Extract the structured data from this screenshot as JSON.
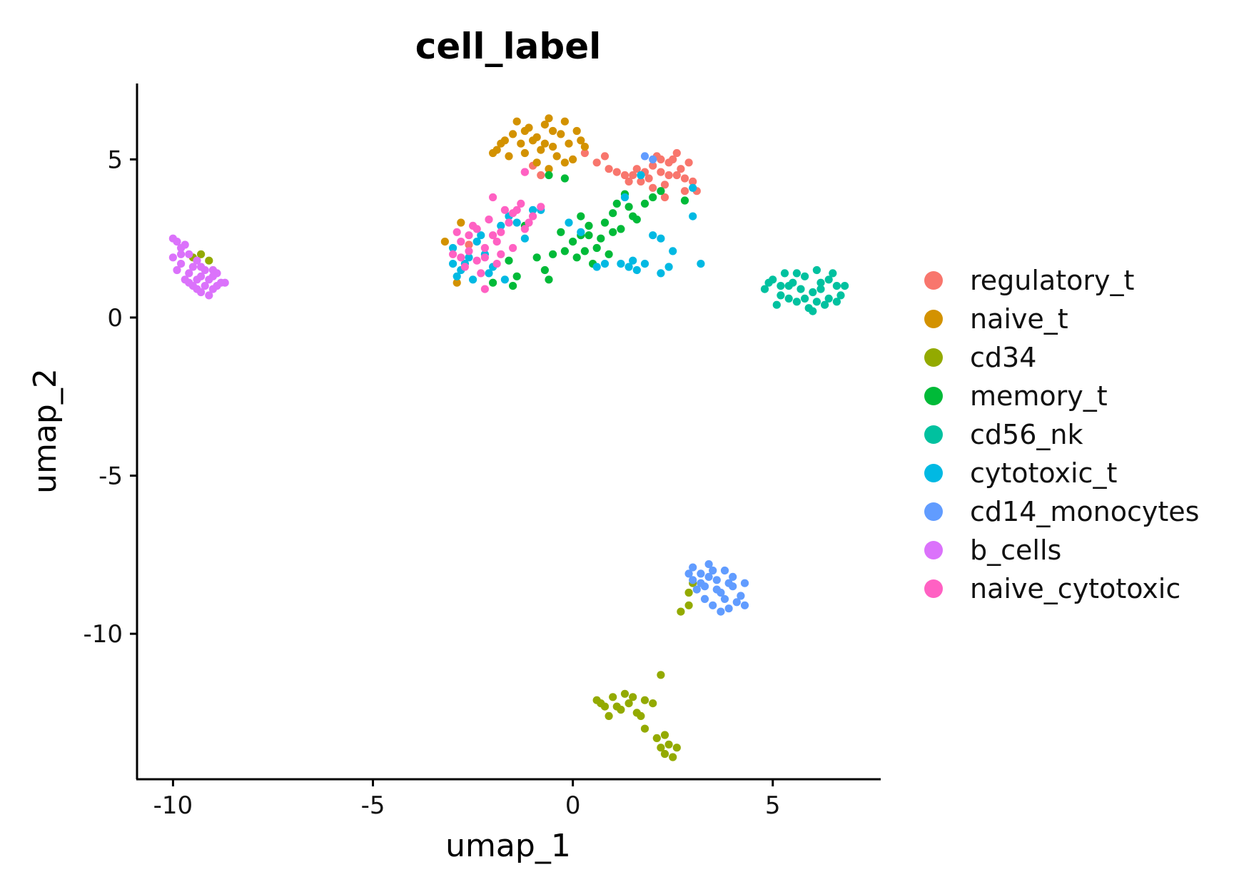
{
  "chart_data": {
    "type": "scatter",
    "title": "cell_label",
    "xlabel": "umap_1",
    "ylabel": "umap_2",
    "xlim": [
      -10.9,
      7.7
    ],
    "ylim": [
      -14.6,
      7.4
    ],
    "xticks": [
      {
        "value": -10,
        "label": "-10"
      },
      {
        "value": -5,
        "label": "-5"
      },
      {
        "value": 0,
        "label": "0"
      },
      {
        "value": 5,
        "label": "5"
      }
    ],
    "yticks": [
      {
        "value": 5,
        "label": "5"
      },
      {
        "value": 0,
        "label": "0"
      },
      {
        "value": -5,
        "label": "-5"
      },
      {
        "value": -10,
        "label": "-10"
      }
    ],
    "grid": false,
    "legend_position": "right",
    "series": [
      {
        "name": "regulatory_t",
        "color": "#F8766D",
        "points": [
          [
            0.6,
            4.9
          ],
          [
            0.9,
            4.7
          ],
          [
            1.1,
            4.6
          ],
          [
            1.3,
            4.5
          ],
          [
            1.5,
            4.5
          ],
          [
            1.7,
            4.3
          ],
          [
            1.9,
            4.4
          ],
          [
            2.0,
            4.8
          ],
          [
            2.1,
            5.1
          ],
          [
            2.2,
            4.6
          ],
          [
            2.3,
            4.2
          ],
          [
            2.4,
            4.9
          ],
          [
            2.5,
            5.0
          ],
          [
            2.6,
            4.5
          ],
          [
            2.7,
            4.7
          ],
          [
            2.8,
            4.4
          ],
          [
            2.9,
            4.9
          ],
          [
            3.0,
            4.3
          ],
          [
            2.3,
            3.8
          ],
          [
            1.8,
            4.6
          ],
          [
            2.0,
            4.1
          ],
          [
            2.6,
            5.2
          ],
          [
            2.8,
            4.0
          ],
          [
            1.4,
            4.3
          ],
          [
            0.8,
            5.1
          ],
          [
            -1.2,
            4.6
          ],
          [
            -0.8,
            4.5
          ],
          [
            0.3,
            5.2
          ],
          [
            -2.6,
            2.3
          ],
          [
            -1.0,
            4.8
          ],
          [
            3.1,
            4.0
          ],
          [
            2.4,
            4.5
          ],
          [
            2.2,
            5.0
          ],
          [
            1.6,
            4.7
          ]
        ]
      },
      {
        "name": "naive_t",
        "color": "#D39200",
        "points": [
          [
            -1.9,
            5.3
          ],
          [
            -1.7,
            5.6
          ],
          [
            -1.5,
            5.8
          ],
          [
            -1.3,
            5.5
          ],
          [
            -1.1,
            6.0
          ],
          [
            -0.9,
            5.7
          ],
          [
            -0.7,
            6.1
          ],
          [
            -0.5,
            5.4
          ],
          [
            -0.3,
            5.8
          ],
          [
            -0.1,
            5.5
          ],
          [
            0.1,
            5.9
          ],
          [
            0.3,
            5.4
          ],
          [
            -1.6,
            5.1
          ],
          [
            -1.2,
            5.2
          ],
          [
            -0.8,
            5.3
          ],
          [
            -0.4,
            5.1
          ],
          [
            0.0,
            5.0
          ],
          [
            -1.4,
            6.2
          ],
          [
            -0.6,
            6.3
          ],
          [
            -0.2,
            6.2
          ],
          [
            -1.8,
            5.5
          ],
          [
            -0.9,
            4.9
          ],
          [
            -0.6,
            4.7
          ],
          [
            -2.0,
            5.2
          ],
          [
            -1.0,
            5.6
          ],
          [
            -0.2,
            4.9
          ],
          [
            0.2,
            5.6
          ],
          [
            -3.2,
            2.4
          ],
          [
            -2.9,
            1.1
          ],
          [
            -2.8,
            3.0
          ],
          [
            -0.5,
            5.9
          ],
          [
            -1.2,
            5.9
          ],
          [
            -0.7,
            5.5
          ]
        ]
      },
      {
        "name": "cd34",
        "color": "#93AA00",
        "points": [
          [
            0.6,
            -12.1
          ],
          [
            0.8,
            -12.3
          ],
          [
            1.0,
            -12.0
          ],
          [
            1.2,
            -12.4
          ],
          [
            1.4,
            -12.2
          ],
          [
            1.6,
            -12.5
          ],
          [
            1.8,
            -12.1
          ],
          [
            0.9,
            -12.6
          ],
          [
            1.3,
            -11.9
          ],
          [
            1.7,
            -12.6
          ],
          [
            2.0,
            -12.2
          ],
          [
            1.1,
            -12.3
          ],
          [
            2.2,
            -13.6
          ],
          [
            2.3,
            -13.8
          ],
          [
            2.4,
            -13.5
          ],
          [
            2.5,
            -13.9
          ],
          [
            2.1,
            -13.3
          ],
          [
            2.3,
            -13.2
          ],
          [
            2.6,
            -13.6
          ],
          [
            1.8,
            -13.0
          ],
          [
            2.2,
            -11.3
          ],
          [
            2.7,
            -9.3
          ],
          [
            2.9,
            -8.7
          ],
          [
            3.0,
            -8.4
          ],
          [
            2.9,
            -9.1
          ],
          [
            -9.3,
            2.0
          ],
          [
            -9.1,
            1.8
          ],
          [
            -9.5,
            1.9
          ],
          [
            1.5,
            -12.0
          ],
          [
            0.7,
            -12.2
          ]
        ]
      },
      {
        "name": "memory_t",
        "color": "#00BA38",
        "points": [
          [
            0.0,
            2.4
          ],
          [
            0.2,
            2.6
          ],
          [
            0.4,
            2.9
          ],
          [
            0.6,
            2.2
          ],
          [
            0.8,
            3.0
          ],
          [
            1.0,
            3.3
          ],
          [
            1.2,
            2.8
          ],
          [
            1.4,
            3.5
          ],
          [
            1.6,
            3.1
          ],
          [
            1.8,
            3.6
          ],
          [
            2.0,
            3.8
          ],
          [
            2.2,
            4.0
          ],
          [
            0.1,
            1.9
          ],
          [
            0.3,
            2.1
          ],
          [
            0.5,
            1.7
          ],
          [
            0.7,
            2.5
          ],
          [
            0.9,
            2.0
          ],
          [
            1.1,
            3.6
          ],
          [
            1.3,
            3.9
          ],
          [
            0.2,
            3.2
          ],
          [
            -0.3,
            2.7
          ],
          [
            -0.5,
            2.0
          ],
          [
            -0.9,
            1.9
          ],
          [
            -1.2,
            2.9
          ],
          [
            -1.6,
            1.8
          ],
          [
            -2.0,
            1.1
          ],
          [
            -1.4,
            1.3
          ],
          [
            -0.7,
            1.5
          ],
          [
            -0.2,
            2.1
          ],
          [
            0.4,
            2.6
          ],
          [
            2.8,
            3.7
          ],
          [
            1.5,
            3.2
          ],
          [
            1.0,
            2.7
          ],
          [
            -0.6,
            4.5
          ],
          [
            -0.2,
            4.4
          ],
          [
            -0.6,
            1.2
          ],
          [
            -1.5,
            1.0
          ]
        ]
      },
      {
        "name": "cd56_nk",
        "color": "#00C19F",
        "points": [
          [
            4.8,
            0.9
          ],
          [
            5.0,
            1.2
          ],
          [
            5.2,
            0.7
          ],
          [
            5.4,
            1.0
          ],
          [
            5.6,
            0.5
          ],
          [
            5.8,
            1.3
          ],
          [
            6.0,
            0.8
          ],
          [
            6.2,
            1.1
          ],
          [
            6.4,
            0.6
          ],
          [
            6.6,
            1.0
          ],
          [
            5.1,
            0.4
          ],
          [
            5.3,
            1.4
          ],
          [
            5.7,
            0.9
          ],
          [
            5.9,
            0.3
          ],
          [
            6.1,
            1.5
          ],
          [
            6.3,
            0.4
          ],
          [
            6.5,
            1.4
          ],
          [
            6.7,
            0.7
          ],
          [
            5.5,
            1.1
          ],
          [
            6.0,
            0.2
          ],
          [
            4.9,
            1.1
          ],
          [
            5.4,
            0.6
          ],
          [
            6.2,
            0.9
          ],
          [
            6.8,
            1.0
          ],
          [
            5.8,
            0.6
          ],
          [
            6.4,
            1.2
          ],
          [
            5.6,
            1.4
          ],
          [
            6.1,
            0.5
          ],
          [
            5.2,
            1.0
          ],
          [
            6.6,
            0.5
          ]
        ]
      },
      {
        "name": "cytotoxic_t",
        "color": "#00B9E3",
        "points": [
          [
            -3.0,
            1.7
          ],
          [
            -2.8,
            1.5
          ],
          [
            -2.6,
            1.9
          ],
          [
            -2.4,
            2.4
          ],
          [
            -2.2,
            2.0
          ],
          [
            -2.0,
            1.6
          ],
          [
            -1.8,
            2.9
          ],
          [
            -1.6,
            3.2
          ],
          [
            -1.4,
            3.0
          ],
          [
            -1.2,
            2.5
          ],
          [
            -1.0,
            3.4
          ],
          [
            -2.9,
            1.3
          ],
          [
            -2.5,
            1.2
          ],
          [
            -2.1,
            1.4
          ],
          [
            -1.7,
            1.2
          ],
          [
            -3.0,
            2.2
          ],
          [
            -2.3,
            2.6
          ],
          [
            1.2,
            1.7
          ],
          [
            1.4,
            1.6
          ],
          [
            1.6,
            1.5
          ],
          [
            1.8,
            1.7
          ],
          [
            2.0,
            2.6
          ],
          [
            2.2,
            2.5
          ],
          [
            2.4,
            1.6
          ],
          [
            2.5,
            2.1
          ],
          [
            2.2,
            1.4
          ],
          [
            1.3,
            3.8
          ],
          [
            1.7,
            4.5
          ],
          [
            3.0,
            4.1
          ],
          [
            3.0,
            3.2
          ],
          [
            3.2,
            1.7
          ],
          [
            0.6,
            1.6
          ],
          [
            0.8,
            1.7
          ],
          [
            0.2,
            2.7
          ],
          [
            -0.1,
            3.0
          ],
          [
            -0.8,
            3.4
          ],
          [
            1.5,
            1.8
          ],
          [
            -2.7,
            1.7
          ]
        ]
      },
      {
        "name": "cd14_monocytes",
        "color": "#619CFF",
        "points": [
          [
            3.0,
            -7.9
          ],
          [
            3.2,
            -8.1
          ],
          [
            3.4,
            -7.8
          ],
          [
            3.6,
            -8.3
          ],
          [
            3.8,
            -8.0
          ],
          [
            4.0,
            -8.5
          ],
          [
            4.2,
            -8.8
          ],
          [
            3.1,
            -8.6
          ],
          [
            3.3,
            -8.9
          ],
          [
            3.5,
            -9.1
          ],
          [
            3.7,
            -8.7
          ],
          [
            3.9,
            -9.2
          ],
          [
            4.1,
            -9.0
          ],
          [
            3.2,
            -8.4
          ],
          [
            3.6,
            -8.6
          ],
          [
            4.3,
            -8.4
          ],
          [
            3.4,
            -8.2
          ],
          [
            3.8,
            -8.9
          ],
          [
            3.0,
            -8.3
          ],
          [
            4.0,
            -8.2
          ],
          [
            3.5,
            -8.0
          ],
          [
            2.9,
            -8.1
          ],
          [
            3.7,
            -9.3
          ],
          [
            4.3,
            -9.1
          ],
          [
            1.8,
            5.1
          ],
          [
            2.0,
            5.0
          ],
          [
            3.3,
            -8.5
          ],
          [
            3.9,
            -8.4
          ]
        ]
      },
      {
        "name": "b_cells",
        "color": "#DB72FB",
        "points": [
          [
            -10.0,
            2.5
          ],
          [
            -9.8,
            2.2
          ],
          [
            -9.6,
            2.0
          ],
          [
            -9.4,
            1.8
          ],
          [
            -9.2,
            1.5
          ],
          [
            -9.0,
            1.3
          ],
          [
            -8.8,
            1.1
          ],
          [
            -10.0,
            1.9
          ],
          [
            -9.9,
            1.5
          ],
          [
            -9.7,
            1.2
          ],
          [
            -9.5,
            1.0
          ],
          [
            -9.3,
            0.8
          ],
          [
            -9.1,
            0.7
          ],
          [
            -8.9,
            1.0
          ],
          [
            -9.8,
            1.7
          ],
          [
            -9.6,
            1.4
          ],
          [
            -9.4,
            1.2
          ],
          [
            -9.2,
            1.0
          ],
          [
            -9.0,
            1.5
          ],
          [
            -8.7,
            1.1
          ],
          [
            -9.7,
            2.3
          ],
          [
            -9.5,
            1.6
          ],
          [
            -9.3,
            1.3
          ],
          [
            -9.9,
            2.4
          ],
          [
            -9.6,
            1.1
          ],
          [
            -9.4,
            0.9
          ],
          [
            -9.1,
            1.2
          ],
          [
            -8.9,
            1.4
          ],
          [
            -9.8,
            2.0
          ],
          [
            -9.3,
            1.6
          ],
          [
            -9.0,
            0.9
          ]
        ]
      },
      {
        "name": "naive_cytotoxic",
        "color": "#FF61C3",
        "points": [
          [
            -3.0,
            2.0
          ],
          [
            -2.8,
            2.4
          ],
          [
            -2.6,
            2.1
          ],
          [
            -2.4,
            1.8
          ],
          [
            -2.2,
            2.2
          ],
          [
            -2.0,
            2.6
          ],
          [
            -1.8,
            2.0
          ],
          [
            -1.6,
            3.0
          ],
          [
            -1.4,
            3.4
          ],
          [
            -1.2,
            2.8
          ],
          [
            -1.0,
            3.2
          ],
          [
            -0.8,
            3.5
          ],
          [
            -2.9,
            2.7
          ],
          [
            -2.5,
            2.9
          ],
          [
            -2.1,
            3.1
          ],
          [
            -1.7,
            3.4
          ],
          [
            -2.7,
            1.6
          ],
          [
            -2.3,
            1.4
          ],
          [
            -1.9,
            1.7
          ],
          [
            -2.2,
            0.9
          ],
          [
            -1.3,
            3.6
          ],
          [
            -1.1,
            3.0
          ],
          [
            -2.0,
            3.8
          ],
          [
            -2.4,
            2.8
          ],
          [
            -1.9,
            2.4
          ],
          [
            -2.6,
            2.6
          ],
          [
            -1.5,
            2.2
          ],
          [
            -2.8,
            1.9
          ],
          [
            -1.2,
            4.6
          ],
          [
            -1.5,
            3.3
          ],
          [
            -2.2,
            1.9
          ],
          [
            -1.8,
            2.7
          ]
        ]
      }
    ]
  }
}
